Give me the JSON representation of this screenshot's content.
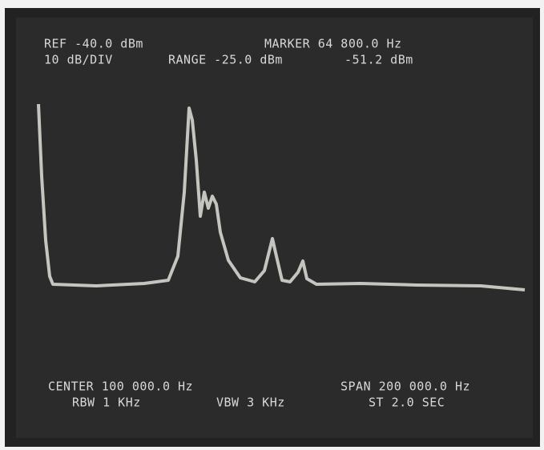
{
  "header": {
    "reference": "REF -40.0 dBm",
    "marker": "MARKER 64 800.0 Hz",
    "scale": "10 dB/DIV",
    "range": "RANGE -25.0 dBm",
    "marker_level": "-51.2 dBm"
  },
  "footer": {
    "center": "CENTER 100 000.0 Hz",
    "span": "SPAN 200 000.0 Hz",
    "rbw": "RBW 1 KHz",
    "vbw": "VBW 3 KHz",
    "sweep_time": "ST 2.0 SEC"
  }
}
